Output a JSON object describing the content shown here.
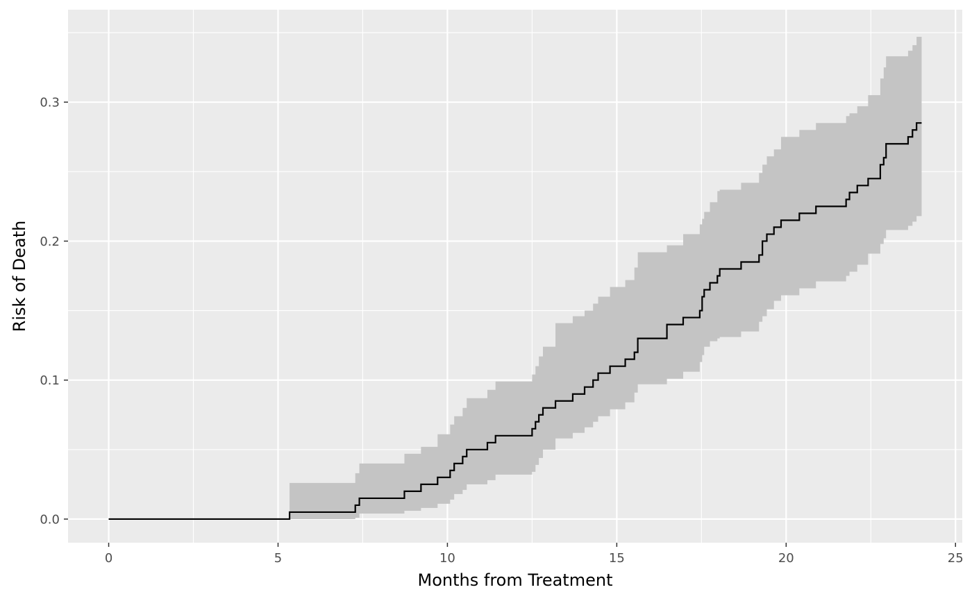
{
  "chart_data": {
    "type": "line",
    "title": "",
    "xlabel": "Months from Treatment",
    "ylabel": "Risk of Death",
    "xlim": [
      -1.2,
      25.2
    ],
    "ylim": [
      -0.017,
      0.3665
    ],
    "x_ticks": [
      0,
      5,
      10,
      15,
      20,
      25
    ],
    "x_tick_labels": [
      "0",
      "5",
      "10",
      "15",
      "20",
      "25"
    ],
    "y_ticks": [
      0.0,
      0.1,
      0.2,
      0.3
    ],
    "y_tick_labels": [
      "0.0",
      "0.1",
      "0.2",
      "0.3"
    ],
    "grid": true,
    "legend": "none",
    "colors": {
      "panel_background": "#ebebeb",
      "grid": "#ffffff",
      "line": "#000000",
      "ribbon": "#c4c4c4"
    },
    "series": [
      {
        "style": "step",
        "x": [
          0,
          5.34,
          7.28,
          7.4,
          8.73,
          9.22,
          9.71,
          10.08,
          10.2,
          10.45,
          10.57,
          11.18,
          11.42,
          12.5,
          12.6,
          12.7,
          12.82,
          13.19,
          13.7,
          14.05,
          14.3,
          14.45,
          14.8,
          15.25,
          15.52,
          15.62,
          16.48,
          16.96,
          17.45,
          17.52,
          17.58,
          17.75,
          17.97,
          18.04,
          18.67,
          19.2,
          19.3,
          19.43,
          19.64,
          19.85,
          20.39,
          20.88,
          21.77,
          21.87,
          22.1,
          22.42,
          22.78,
          22.88,
          22.95,
          23.6,
          23.73,
          23.85,
          24.0
        ],
        "y": [
          0,
          0.005,
          0.01,
          0.015,
          0.02,
          0.025,
          0.03,
          0.035,
          0.04,
          0.045,
          0.05,
          0.055,
          0.06,
          0.065,
          0.07,
          0.075,
          0.08,
          0.085,
          0.09,
          0.095,
          0.1,
          0.105,
          0.11,
          0.115,
          0.12,
          0.13,
          0.14,
          0.145,
          0.15,
          0.16,
          0.165,
          0.17,
          0.175,
          0.18,
          0.185,
          0.19,
          0.2,
          0.205,
          0.21,
          0.215,
          0.22,
          0.225,
          0.23,
          0.235,
          0.24,
          0.245,
          0.255,
          0.26,
          0.27,
          0.275,
          0.28,
          0.285,
          0.285
        ]
      }
    ],
    "confidence_band": {
      "x": [
        5.34,
        6.25,
        7.28,
        7.4,
        8.35,
        8.73,
        9.22,
        9.71,
        10.08,
        10.2,
        10.45,
        10.57,
        11.18,
        11.42,
        12.5,
        12.6,
        12.7,
        12.82,
        13.19,
        13.7,
        14.05,
        14.3,
        14.45,
        14.8,
        15.25,
        15.52,
        15.62,
        16.48,
        16.96,
        17.45,
        17.52,
        17.58,
        17.75,
        17.97,
        18.04,
        18.67,
        19.2,
        19.3,
        19.43,
        19.64,
        19.85,
        20.39,
        20.88,
        21.77,
        21.87,
        22.1,
        22.42,
        22.78,
        22.88,
        22.95,
        23.6,
        23.73,
        23.85,
        24.0
      ],
      "upper": [
        0.026,
        0.026,
        0.033,
        0.04,
        0.04,
        0.047,
        0.052,
        0.061,
        0.068,
        0.074,
        0.08,
        0.087,
        0.093,
        0.099,
        0.104,
        0.11,
        0.117,
        0.124,
        0.141,
        0.146,
        0.15,
        0.155,
        0.16,
        0.167,
        0.172,
        0.181,
        0.192,
        0.197,
        0.205,
        0.212,
        0.216,
        0.221,
        0.228,
        0.236,
        0.237,
        0.242,
        0.249,
        0.255,
        0.261,
        0.266,
        0.275,
        0.28,
        0.285,
        0.29,
        0.292,
        0.297,
        0.305,
        0.317,
        0.325,
        0.333,
        0.337,
        0.341,
        0.347,
        0.349
      ],
      "lower": [
        0.0,
        0.0,
        0.001,
        0.004,
        0.004,
        0.006,
        0.008,
        0.011,
        0.014,
        0.018,
        0.021,
        0.025,
        0.028,
        0.032,
        0.034,
        0.039,
        0.044,
        0.05,
        0.058,
        0.062,
        0.066,
        0.07,
        0.074,
        0.079,
        0.084,
        0.091,
        0.097,
        0.101,
        0.106,
        0.113,
        0.118,
        0.124,
        0.128,
        0.13,
        0.131,
        0.135,
        0.142,
        0.146,
        0.151,
        0.157,
        0.161,
        0.166,
        0.171,
        0.175,
        0.178,
        0.183,
        0.191,
        0.198,
        0.202,
        0.208,
        0.211,
        0.214,
        0.218,
        0.224
      ]
    }
  }
}
